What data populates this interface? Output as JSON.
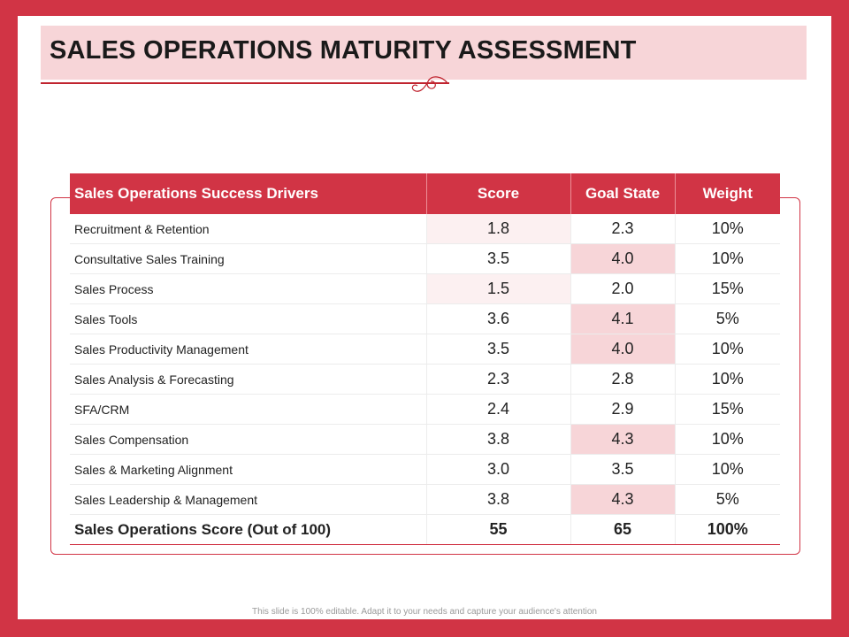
{
  "slide": {
    "title": "SALES OPERATIONS MATURITY ASSESSMENT",
    "footer": "This slide is 100% editable. Adapt it to your needs and capture your audience's attention"
  },
  "table": {
    "headers": [
      "Sales Operations Success Drivers",
      "Score",
      "Goal State",
      "Weight"
    ],
    "rows": [
      {
        "driver": "Recruitment & Retention",
        "score": "1.8",
        "goal": "2.3",
        "weight": "10%"
      },
      {
        "driver": "Consultative Sales Training",
        "score": "3.5",
        "goal": "4.0",
        "weight": "10%"
      },
      {
        "driver": "Sales Process",
        "score": "1.5",
        "goal": "2.0",
        "weight": "15%"
      },
      {
        "driver": "Sales Tools",
        "score": "3.6",
        "goal": "4.1",
        "weight": "5%"
      },
      {
        "driver": "Sales Productivity Management",
        "score": "3.5",
        "goal": "4.0",
        "weight": "10%"
      },
      {
        "driver": "Sales Analysis & Forecasting",
        "score": "2.3",
        "goal": "2.8",
        "weight": "10%"
      },
      {
        "driver": "SFA/CRM",
        "score": "2.4",
        "goal": "2.9",
        "weight": "15%"
      },
      {
        "driver": "Sales Compensation",
        "score": "3.8",
        "goal": "4.3",
        "weight": "10%"
      },
      {
        "driver": "Sales & Marketing Alignment",
        "score": "3.0",
        "goal": "3.5",
        "weight": "10%"
      },
      {
        "driver": "Sales Leadership & Management",
        "score": "3.8",
        "goal": "4.3",
        "weight": "5%"
      }
    ],
    "total": {
      "driver": "Sales Operations Score (Out of 100)",
      "score": "55",
      "goal": "65",
      "weight": "100%"
    }
  },
  "colors": {
    "accent": "#d13445",
    "title_band": "#f7d5d8",
    "score_tint": "#fcf0f1",
    "goal_tint": "#f7d5d8"
  }
}
